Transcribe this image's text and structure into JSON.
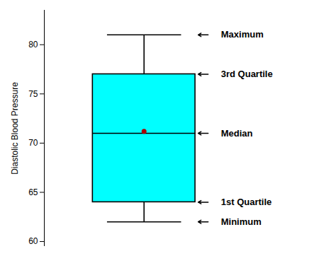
{
  "chart_data": {
    "type": "box",
    "ylabel": "Diastolic Blood Pressure",
    "boxes": [
      {
        "minimum": 62,
        "q1": 64,
        "median": 71,
        "q3": 77,
        "maximum": 81,
        "mean": 71.2,
        "color": "#00FFFF"
      }
    ],
    "line_color": "#000000",
    "mean_color": "#AA0000",
    "annotations": [
      {
        "text": "Maximum",
        "y": 81
      },
      {
        "text": "3rd Quartile",
        "y": 77
      },
      {
        "text": "Median",
        "y": 71
      },
      {
        "text": "1st Quartile",
        "y": 64
      },
      {
        "text": "Minimum",
        "y": 62
      }
    ],
    "ylim": [
      59.5,
      83.5
    ],
    "yticks": [
      60,
      65,
      70,
      75,
      80
    ],
    "grid": false,
    "tick_labels": "y"
  }
}
